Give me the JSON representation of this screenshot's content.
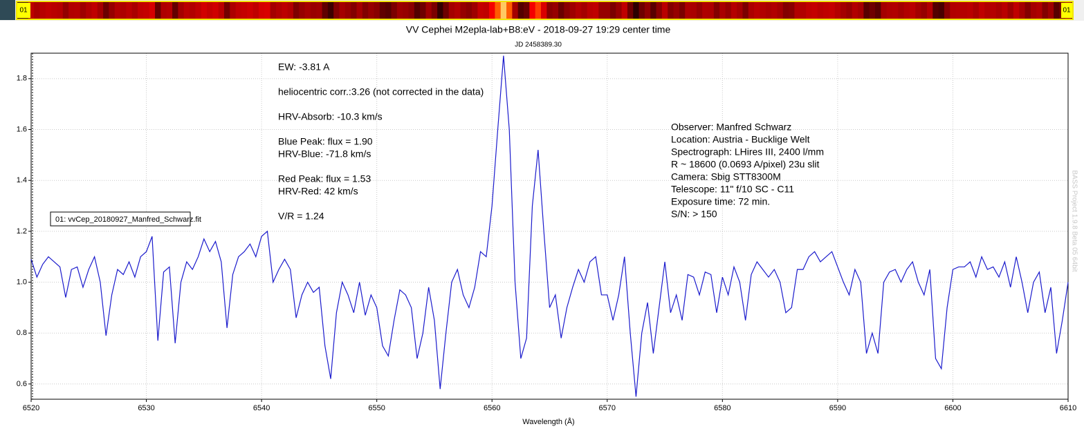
{
  "chart_data": {
    "type": "line",
    "title": "VV Cephei M2epla-lab+B8:eV - 2018-09-27 19:29 center time",
    "subtitle": "JD 2458389.30",
    "x_label": "Wavelength (Å)",
    "strip_label": "01",
    "watermark": "BASS Project 1.9.8 Beta 05 64bit",
    "annotations": [
      "EW: -3.81 A",
      "heliocentric corr.:3.26 (not corrected in the data)",
      "HRV-Absorb: -10.3 km/s",
      "Blue Peak:  flux = 1.90",
      "HRV-Blue: -71.8 km/s",
      "Red Peak:  flux = 1.53",
      "HRV-Red: 42 km/s",
      "V/R = 1.24"
    ],
    "observer_info": [
      "Observer: Manfred Schwarz",
      "Location: Austria - Bucklige Welt",
      "Spectrograph: LHires III, 2400 l/mm",
      "R ~ 18600 (0.0693 A/pixel) 23u slit",
      "Camera: Sbig STT8300M",
      "Telescope: 11\" f/10 SC - C11",
      "Exposure time: 72 min.",
      "S/N:  > 150"
    ],
    "xlim": [
      6520,
      6610
    ],
    "xticks": [
      6520,
      6530,
      6540,
      6550,
      6560,
      6570,
      6580,
      6590,
      6600,
      6610
    ],
    "ylim": [
      0.54,
      1.9
    ],
    "yticks": [
      0.6,
      0.8,
      {
        "value": 1,
        "label": "1.0"
      },
      1.2,
      1.4,
      1.6,
      1.8
    ],
    "grid": true,
    "legend": "upper-left",
    "x": [
      6520,
      6520.5,
      6521,
      6521.5,
      6522,
      6522.5,
      6523,
      6523.5,
      6524,
      6524.5,
      6525,
      6525.5,
      6526,
      6526.5,
      6527,
      6527.5,
      6528,
      6528.5,
      6529,
      6529.5,
      6530,
      6530.5,
      6531,
      6531.5,
      6532,
      6532.5,
      6533,
      6533.5,
      6534,
      6534.5,
      6535,
      6535.5,
      6536,
      6536.5,
      6537,
      6537.5,
      6538,
      6538.5,
      6539,
      6539.5,
      6540,
      6540.5,
      6541,
      6541.5,
      6542,
      6542.5,
      6543,
      6543.5,
      6544,
      6544.5,
      6545,
      6545.5,
      6546,
      6546.5,
      6547,
      6547.5,
      6548,
      6548.5,
      6549,
      6549.5,
      6550,
      6550.5,
      6551,
      6551.5,
      6552,
      6552.5,
      6553,
      6553.5,
      6554,
      6554.5,
      6555,
      6555.5,
      6556,
      6556.5,
      6557,
      6557.5,
      6558,
      6558.5,
      6559,
      6559.5,
      6560,
      6560.5,
      6561,
      6561.5,
      6562,
      6562.5,
      6563,
      6563.5,
      6564,
      6564.5,
      6565,
      6565.5,
      6566,
      6566.5,
      6567,
      6567.5,
      6568,
      6568.5,
      6569,
      6569.5,
      6570,
      6570.5,
      6571,
      6571.5,
      6572,
      6572.5,
      6573,
      6573.5,
      6574,
      6574.5,
      6575,
      6575.5,
      6576,
      6576.5,
      6577,
      6577.5,
      6578,
      6578.5,
      6579,
      6579.5,
      6580,
      6580.5,
      6581,
      6581.5,
      6582,
      6582.5,
      6583,
      6583.5,
      6584,
      6584.5,
      6585,
      6585.5,
      6586,
      6586.5,
      6587,
      6587.5,
      6588,
      6588.5,
      6589,
      6589.5,
      6590,
      6590.5,
      6591,
      6591.5,
      6592,
      6592.5,
      6593,
      6593.5,
      6594,
      6594.5,
      6595,
      6595.5,
      6596,
      6596.5,
      6597,
      6597.5,
      6598,
      6598.5,
      6599,
      6599.5,
      6600,
      6600.5,
      6601,
      6601.5,
      6602,
      6602.5,
      6603,
      6603.5,
      6604,
      6604.5,
      6605,
      6605.5,
      6606,
      6606.5,
      6607,
      6607.5,
      6608,
      6608.5,
      6609,
      6609.5,
      6610
    ],
    "series": [
      {
        "name": "01: vvCep_20180927_Manfred_Schwarz.fit",
        "color": "#1a1acc",
        "values": [
          1.09,
          1.02,
          1.07,
          1.1,
          1.08,
          1.06,
          0.94,
          1.05,
          1.06,
          0.98,
          1.05,
          1.1,
          1.0,
          0.79,
          0.95,
          1.05,
          1.03,
          1.08,
          1.02,
          1.1,
          1.12,
          1.18,
          0.77,
          1.04,
          1.06,
          0.76,
          1.0,
          1.08,
          1.05,
          1.1,
          1.17,
          1.12,
          1.16,
          1.08,
          0.82,
          1.03,
          1.1,
          1.12,
          1.15,
          1.1,
          1.18,
          1.2,
          1.0,
          1.05,
          1.09,
          1.05,
          0.86,
          0.95,
          1.0,
          0.96,
          0.98,
          0.75,
          0.62,
          0.88,
          1.0,
          0.95,
          0.88,
          1.0,
          0.87,
          0.95,
          0.9,
          0.75,
          0.71,
          0.85,
          0.97,
          0.95,
          0.9,
          0.7,
          0.8,
          0.98,
          0.85,
          0.58,
          0.8,
          1.0,
          1.05,
          0.95,
          0.9,
          0.98,
          1.12,
          1.1,
          1.3,
          1.6,
          1.89,
          1.6,
          1.0,
          0.7,
          0.78,
          1.3,
          1.52,
          1.2,
          0.9,
          0.95,
          0.78,
          0.9,
          0.98,
          1.05,
          1.0,
          1.08,
          1.1,
          0.95,
          0.95,
          0.85,
          0.95,
          1.1,
          0.8,
          0.55,
          0.8,
          0.92,
          0.72,
          0.9,
          1.08,
          0.88,
          0.95,
          0.85,
          1.03,
          1.02,
          0.95,
          1.04,
          1.03,
          0.88,
          1.02,
          0.95,
          1.06,
          1.0,
          0.85,
          1.03,
          1.08,
          1.05,
          1.02,
          1.05,
          1.0,
          0.88,
          0.9,
          1.05,
          1.05,
          1.1,
          1.12,
          1.08,
          1.1,
          1.12,
          1.06,
          1.0,
          0.95,
          1.05,
          1.0,
          0.72,
          0.8,
          0.72,
          1.0,
          1.04,
          1.05,
          1.0,
          1.05,
          1.08,
          1.0,
          0.95,
          1.05,
          0.7,
          0.66,
          0.9,
          1.05,
          1.06,
          1.06,
          1.08,
          1.02,
          1.1,
          1.05,
          1.06,
          1.02,
          1.08,
          0.98,
          1.1,
          1.0,
          0.88,
          1.0,
          1.04,
          0.88,
          0.98,
          0.72,
          0.85,
          1.0
        ]
      }
    ]
  }
}
